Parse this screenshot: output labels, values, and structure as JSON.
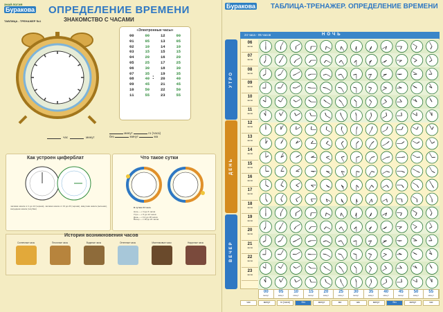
{
  "left": {
    "logo_top": "ЗНАЙ·ЛОГИЯ",
    "logo": "Буракова",
    "poster_code": "ТАБЛИЦА - ТРЕНАЖЕР №1",
    "title": "ОПРЕДЕЛЕНИЕ ВРЕМЕНИ",
    "subtitle": "ЗНАКОМСТВО С ЧАСАМИ",
    "etable": {
      "title": "«Электронные часы»",
      "col1_h": [
        "00",
        "01",
        "02",
        "03",
        "04",
        "05",
        "06",
        "07",
        "08",
        "09",
        "10",
        "11"
      ],
      "col1_m": [
        "00",
        "05",
        "10",
        "15",
        "20",
        "25",
        "30",
        "35",
        "40",
        "45",
        "50",
        "55"
      ],
      "col2_h": [
        "12",
        "13",
        "14",
        "15",
        "16",
        "17",
        "18",
        "19",
        "20",
        "21",
        "22",
        "23"
      ],
      "col2_m": [
        "00",
        "05",
        "10",
        "15",
        "20",
        "25",
        "30",
        "35",
        "40",
        "45",
        "50",
        "55"
      ],
      "colon": ":"
    },
    "input_row1": {
      "hours": "час",
      "minutes": "минут"
    },
    "input_row2": {
      "without": "без",
      "minutes": "минут",
      "ma": "ма",
      "hours": "го (часа)"
    },
    "dial_title": "Как устроен циферблат",
    "day_title": "Что такое сутки",
    "dial_text": "часовая шкала от 1 до 12 (черная), часовая шкала от 13 до 24 (черная), минутная шкала (зеленая), секундная шкала (голубая)",
    "day_text": "В сутках 24 часа. Мы можем наблюдать четыре времени суток: Ночь с 0 до 6 часов, Утро с 6 до 12 часов, День с 12 до 18 часов, Вечер с 18 до 24 часов",
    "day_rows": [
      "Ночь — с 0 до 6 часов",
      "Утро — с 6 до 12 часов",
      "День — с 12 до 18 часов",
      "Вечер — с 18 до 24 часов"
    ],
    "day_header": "В сутках 24 часа.",
    "history_title": "История возникновения часов",
    "history": [
      {
        "label": "Солнечные часы",
        "color": "#e2a93a"
      },
      {
        "label": "Песочные часы",
        "color": "#b7843d"
      },
      {
        "label": "Водяные часы",
        "color": "#8e6b3a"
      },
      {
        "label": "Огненные часы",
        "color": "#a7c7d9"
      },
      {
        "label": "Маятниковые часы",
        "color": "#6a4a2c"
      },
      {
        "label": "Наручные часы",
        "color": "#7a4a3c"
      }
    ]
  },
  "right": {
    "logo": "Буракова",
    "title": "ТАБЛИЦА-ТРЕНАЖЕР. ОПРЕДЕЛЕНИЕ ВРЕМЕНИ",
    "head_range": "24 часа - 05 часов",
    "night": "НОЧЬ",
    "parts": [
      {
        "label": "УТРО",
        "color": "#2f78c3"
      },
      {
        "label": "ДЕНЬ",
        "color": "#d48b1e"
      },
      {
        "label": "ВЕЧЕР",
        "color": "#2f78c3"
      }
    ],
    "hours": [
      "06",
      "07",
      "08",
      "09",
      "10",
      "11",
      "12",
      "13",
      "14",
      "15",
      "16",
      "17",
      "18",
      "19",
      "20",
      "21",
      "22",
      "23"
    ],
    "hour_unit": "часов",
    "minutes": [
      "00",
      "05",
      "10",
      "15",
      "20",
      "25",
      "30",
      "35",
      "40",
      "45",
      "50",
      "55"
    ],
    "minute_unit": "минут",
    "footer": [
      "час",
      "минут",
      "го (часа)",
      "без",
      "минут",
      "ма",
      "час",
      "минут",
      "без",
      "минут",
      "час"
    ]
  }
}
